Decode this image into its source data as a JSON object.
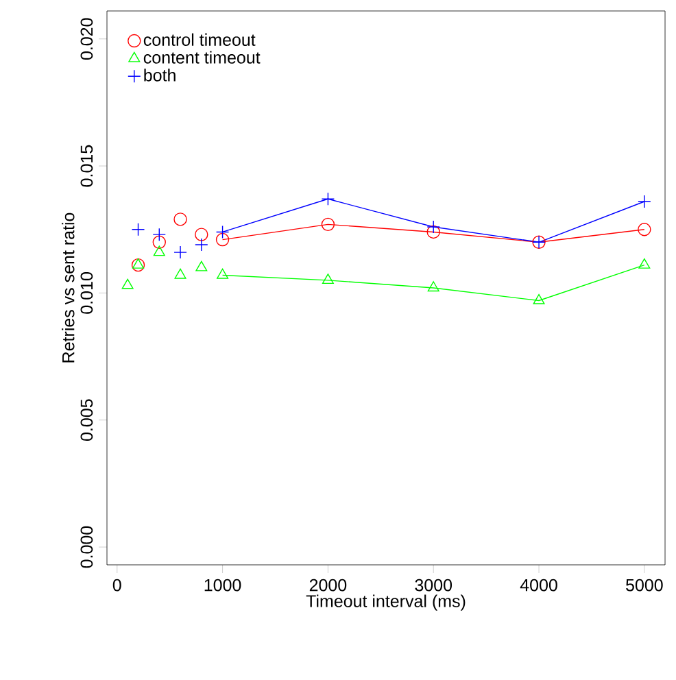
{
  "chart_data": {
    "type": "scatter",
    "xlabel": "Timeout interval (ms)",
    "ylabel": "Retries vs sent ratio",
    "xlim": [
      -96,
      5196
    ],
    "ylim": [
      -0.0007,
      0.0211
    ],
    "xticks": [
      0,
      1000,
      2000,
      3000,
      4000,
      5000
    ],
    "yticks": [
      {
        "value": 0,
        "label": "0.000"
      },
      {
        "value": 0.005,
        "label": "0.005"
      },
      {
        "value": 0.01,
        "label": "0.010"
      },
      {
        "value": 0.015,
        "label": "0.015"
      },
      {
        "value": 0.02,
        "label": "0.020"
      }
    ],
    "legend": "top left",
    "series": [
      {
        "name": "control timeout",
        "color": "#ff0000",
        "marker": "circle",
        "x": [
          200,
          400,
          600,
          800,
          1000,
          2000,
          3000,
          4000,
          5000
        ],
        "values": [
          0.0111,
          0.012,
          0.0129,
          0.0123,
          0.0121,
          0.0127,
          0.0124,
          0.012,
          0.0125
        ]
      },
      {
        "name": "content timeout",
        "color": "#00ff00",
        "marker": "triangle",
        "x": [
          100,
          200,
          400,
          600,
          800,
          1000,
          2000,
          3000,
          4000,
          5000
        ],
        "values": [
          0.0103,
          0.0111,
          0.0116,
          0.0107,
          0.011,
          0.0107,
          0.0105,
          0.0102,
          0.0097,
          0.0111
        ]
      },
      {
        "name": "both",
        "color": "#0000ff",
        "marker": "cross",
        "x": [
          200,
          400,
          600,
          800,
          1000,
          2000,
          3000,
          4000,
          5000
        ],
        "values": [
          0.0125,
          0.0123,
          0.0116,
          0.0119,
          0.0124,
          0.0137,
          0.0126,
          0.012,
          0.0136
        ]
      },
      {
        "type": "line",
        "color": "#ff0000",
        "marker": "none",
        "x": [
          1000,
          2000,
          3000,
          4000,
          5000
        ],
        "values": [
          0.0121,
          0.0127,
          0.0124,
          0.012,
          0.0125
        ]
      },
      {
        "type": "line",
        "color": "#00ff00",
        "marker": "none",
        "x": [
          1000,
          2000,
          3000,
          4000,
          5000
        ],
        "values": [
          0.0107,
          0.0105,
          0.0102,
          0.0097,
          0.0111
        ]
      },
      {
        "type": "line",
        "color": "#0000ff",
        "marker": "none",
        "x": [
          1000,
          2000,
          3000,
          4000,
          5000
        ],
        "values": [
          0.0124,
          0.0137,
          0.0126,
          0.012,
          0.0136
        ]
      }
    ]
  }
}
